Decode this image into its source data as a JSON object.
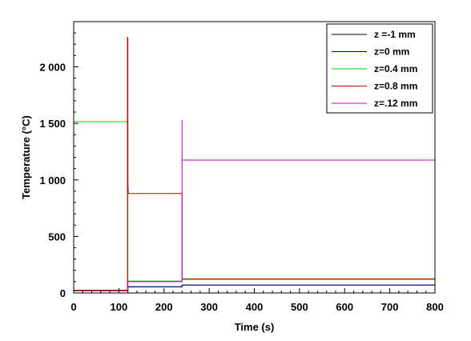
{
  "chart_data": {
    "type": "line",
    "title": "",
    "xlabel": "Time (s)",
    "ylabel": "Temperature (°C)",
    "xlim": [
      0,
      800
    ],
    "ylim": [
      0,
      2400
    ],
    "xticks": [
      0,
      100,
      200,
      300,
      400,
      500,
      600,
      700,
      800
    ],
    "xtick_labels": [
      "0",
      "100",
      "200",
      "300",
      "400",
      "500",
      "600",
      "700",
      "800"
    ],
    "yticks": [
      0,
      500,
      1000,
      1500,
      2000
    ],
    "ytick_labels": [
      "0",
      "500",
      "1 000",
      "1 500",
      "2 000"
    ],
    "grid": false,
    "legend_position": "top-right",
    "series": [
      {
        "name": "z =-1 mm",
        "color": "#000000",
        "x": [
          0,
          120,
          120,
          240,
          240,
          800
        ],
        "y": [
          20,
          20,
          55,
          55,
          70,
          70
        ]
      },
      {
        "name": "z=0 mm",
        "color": "#00008b",
        "x": [
          0,
          120,
          120,
          240,
          240,
          800
        ],
        "y": [
          25,
          25,
          55,
          55,
          70,
          70
        ]
      },
      {
        "name": "z=0.4 mm",
        "color": "#00cc00",
        "x": [
          0,
          120,
          120,
          240,
          240,
          800
        ],
        "y": [
          1515,
          1515,
          105,
          105,
          120,
          120
        ]
      },
      {
        "name": "z=0.8 mm",
        "color": "#cc0000",
        "x": [
          0,
          119,
          119,
          120,
          120,
          121,
          122,
          124,
          240,
          240,
          800
        ],
        "y": [
          25,
          25,
          2260,
          2260,
          975,
          880,
          880,
          880,
          880,
          125,
          125
        ]
      },
      {
        "name": "z=.12 mm",
        "color": "#cc00cc",
        "x": [
          0,
          120,
          120,
          240,
          240,
          240,
          241,
          800
        ],
        "y": [
          0,
          0,
          100,
          100,
          1530,
          1180,
          1175,
          1175
        ]
      }
    ]
  }
}
